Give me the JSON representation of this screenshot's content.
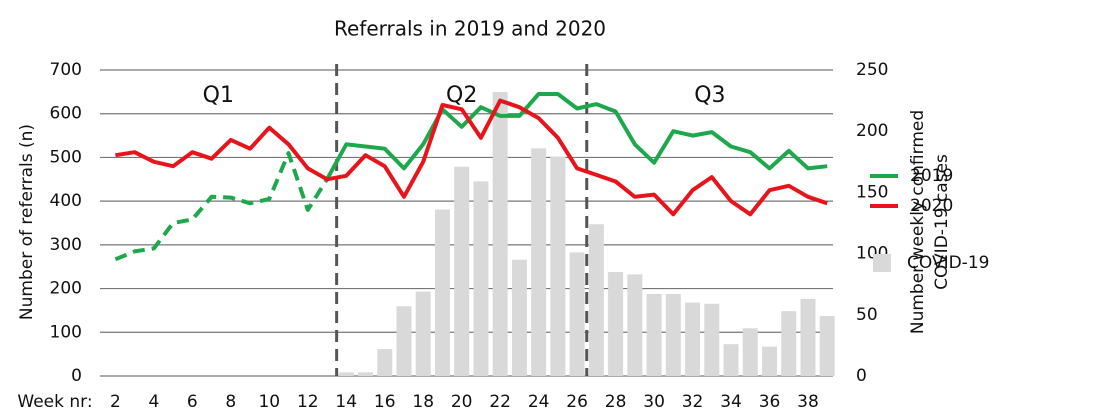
{
  "chart_data": {
    "type": "line",
    "title": "Referrals in 2019 and 2020",
    "ylabel": "Number of referrals (n)",
    "y2label": [
      "Number weekly confirmed",
      "COVID-19 cases"
    ],
    "xlabel": "Week nr:",
    "x": [
      2,
      3,
      4,
      5,
      6,
      7,
      8,
      9,
      10,
      11,
      12,
      13,
      14,
      15,
      16,
      17,
      18,
      19,
      20,
      21,
      22,
      23,
      24,
      25,
      26,
      27,
      28,
      29,
      30,
      31,
      32,
      33,
      34,
      35,
      36,
      37,
      38,
      39
    ],
    "xlim": [
      1.2,
      39.3
    ],
    "xticks": [
      2,
      4,
      6,
      8,
      10,
      12,
      14,
      16,
      18,
      20,
      22,
      24,
      26,
      28,
      30,
      32,
      34,
      36,
      38
    ],
    "ylim": [
      0,
      700
    ],
    "yticks": [
      0,
      100,
      200,
      300,
      400,
      500,
      600,
      700
    ],
    "y2lim": [
      0,
      250
    ],
    "y2ticks": [
      0,
      50,
      100,
      150,
      200,
      250
    ],
    "grid": true,
    "dividers": [
      13.5,
      26.5
    ],
    "annotations": [
      "Q1",
      "Q2",
      "Q3"
    ],
    "series": [
      {
        "name": "2019",
        "type": "line",
        "color": "#1ea84c",
        "dashed_through": 13,
        "values": [
          267,
          285,
          292,
          350,
          358,
          410,
          408,
          395,
          405,
          510,
          380,
          450,
          530,
          525,
          520,
          475,
          530,
          610,
          570,
          615,
          595,
          595,
          645,
          645,
          612,
          622,
          605,
          530,
          488,
          560,
          550,
          558,
          525,
          512,
          475,
          515,
          475,
          480
        ]
      },
      {
        "name": "2020",
        "type": "line",
        "color": "#e8141b",
        "values": [
          505,
          512,
          490,
          480,
          512,
          497,
          540,
          520,
          568,
          530,
          475,
          450,
          458,
          505,
          480,
          410,
          490,
          620,
          610,
          545,
          630,
          615,
          590,
          545,
          475,
          460,
          445,
          410,
          415,
          370,
          425,
          455,
          400,
          370,
          425,
          435,
          410,
          395
        ]
      },
      {
        "name": "COVID-19",
        "type": "bar",
        "axis": "y2",
        "color": "#d9d9d9",
        "values": [
          null,
          null,
          null,
          null,
          null,
          null,
          null,
          null,
          null,
          null,
          null,
          null,
          3,
          3,
          22,
          57,
          69,
          136,
          171,
          159,
          232,
          95,
          186,
          179,
          101,
          124,
          85,
          83,
          67,
          67,
          60,
          59,
          26,
          39,
          24,
          53,
          63,
          49
        ]
      }
    ]
  }
}
